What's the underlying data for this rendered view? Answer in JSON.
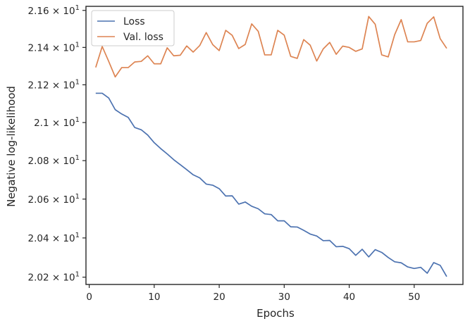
{
  "chart_data": {
    "type": "line",
    "xlabel": "Epochs",
    "ylabel": "Negative log-likelihood",
    "xlim": [
      -0.5,
      57.5
    ],
    "ylim": [
      20.163,
      21.622
    ],
    "y_scale": "log",
    "grid": false,
    "legend_position": "top-left",
    "x_ticks": [
      {
        "value": 0,
        "label": "0"
      },
      {
        "value": 10,
        "label": "10"
      },
      {
        "value": 20,
        "label": "20"
      },
      {
        "value": 30,
        "label": "30"
      },
      {
        "value": 40,
        "label": "40"
      },
      {
        "value": 50,
        "label": "50"
      }
    ],
    "y_ticks": [
      {
        "value": 20.2,
        "label": "2.02 × 10",
        "exp": "1"
      },
      {
        "value": 20.4,
        "label": "2.04 × 10",
        "exp": "1"
      },
      {
        "value": 20.6,
        "label": "2.06 × 10",
        "exp": "1"
      },
      {
        "value": 20.8,
        "label": "2.08 × 10",
        "exp": "1"
      },
      {
        "value": 21.0,
        "label": "2.1 × 10",
        "exp": "1"
      },
      {
        "value": 21.2,
        "label": "2.12 × 10",
        "exp": "1"
      },
      {
        "value": 21.4,
        "label": "2.14 × 10",
        "exp": "1"
      },
      {
        "value": 21.6,
        "label": "2.16 × 10",
        "exp": "1"
      }
    ],
    "x": [
      1,
      2,
      3,
      4,
      5,
      6,
      7,
      8,
      9,
      10,
      11,
      12,
      13,
      14,
      15,
      16,
      17,
      18,
      19,
      20,
      21,
      22,
      23,
      24,
      25,
      26,
      27,
      28,
      29,
      30,
      31,
      32,
      33,
      34,
      35,
      36,
      37,
      38,
      39,
      40,
      41,
      42,
      43,
      44,
      45,
      46,
      47,
      48,
      49,
      50,
      51,
      52,
      53,
      54,
      55
    ],
    "series": [
      {
        "name": "Loss",
        "color": "#4c72b0",
        "values": [
          21.155,
          21.155,
          21.13,
          21.068,
          21.045,
          21.027,
          20.974,
          20.962,
          20.934,
          20.894,
          20.863,
          20.835,
          20.805,
          20.779,
          20.753,
          20.726,
          20.71,
          20.678,
          20.672,
          20.654,
          20.616,
          20.617,
          20.574,
          20.585,
          20.563,
          20.55,
          20.524,
          20.52,
          20.488,
          20.488,
          20.457,
          20.456,
          20.439,
          20.42,
          20.41,
          20.386,
          20.387,
          20.355,
          20.357,
          20.345,
          20.311,
          20.342,
          20.303,
          20.34,
          20.326,
          20.3,
          20.278,
          20.273,
          20.252,
          20.244,
          20.25,
          20.22,
          20.274,
          20.26,
          20.203
        ]
      },
      {
        "name": "Val. loss",
        "color": "#dd8452",
        "values": [
          21.293,
          21.405,
          21.325,
          21.242,
          21.292,
          21.292,
          21.322,
          21.325,
          21.355,
          21.312,
          21.312,
          21.398,
          21.355,
          21.358,
          21.408,
          21.375,
          21.41,
          21.48,
          21.415,
          21.383,
          21.492,
          21.465,
          21.394,
          21.416,
          21.527,
          21.487,
          21.36,
          21.36,
          21.492,
          21.466,
          21.352,
          21.341,
          21.442,
          21.412,
          21.327,
          21.392,
          21.427,
          21.363,
          21.407,
          21.4,
          21.379,
          21.392,
          21.567,
          21.525,
          21.36,
          21.349,
          21.469,
          21.55,
          21.43,
          21.43,
          21.437,
          21.53,
          21.565,
          21.447,
          21.395
        ]
      }
    ]
  }
}
